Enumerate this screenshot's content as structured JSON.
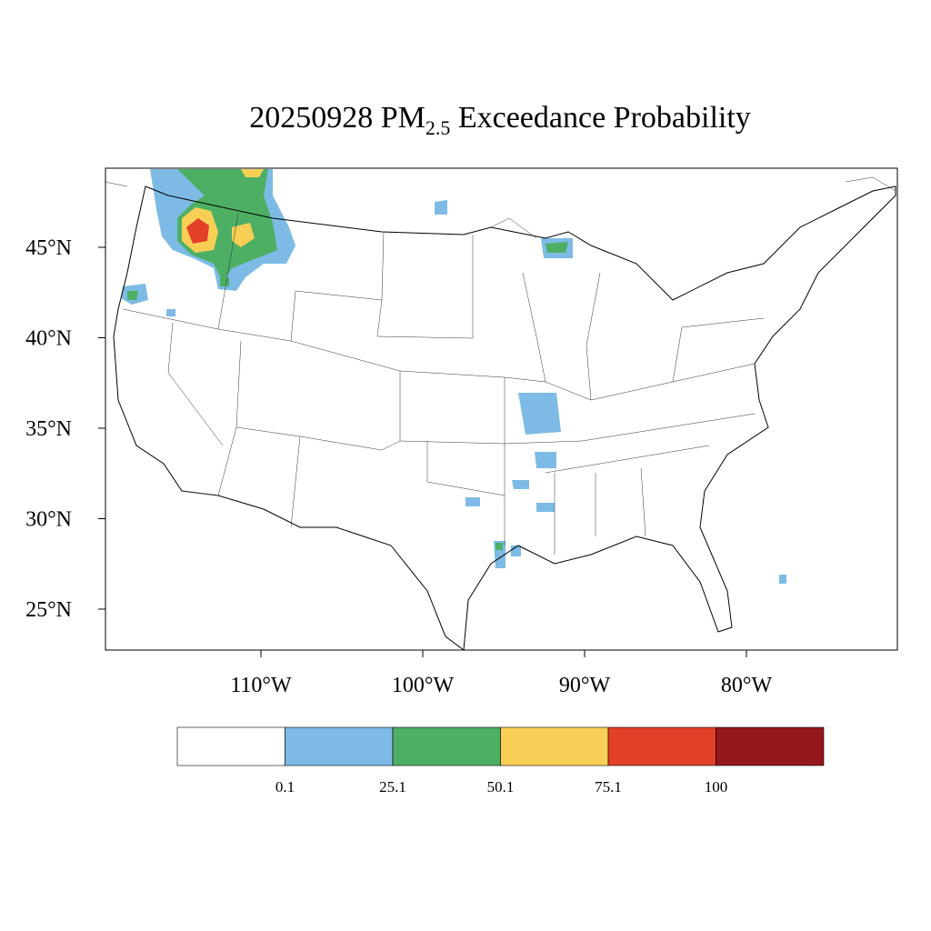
{
  "chart_data": {
    "type": "map",
    "title": {
      "main": "20250928 PM",
      "subscript": "2.5",
      "rest": " Exceedance Probability"
    },
    "yticks": [
      {
        "value": 45,
        "label": "45°N"
      },
      {
        "value": 40,
        "label": "40°N"
      },
      {
        "value": 35,
        "label": "35°N"
      },
      {
        "value": 30,
        "label": "30°N"
      },
      {
        "value": 25,
        "label": "25°N"
      }
    ],
    "xticks": [
      {
        "value": -110,
        "label": "110°W"
      },
      {
        "value": -100,
        "label": "100°W"
      },
      {
        "value": -90,
        "label": "90°W"
      },
      {
        "value": -80,
        "label": "80°W"
      }
    ],
    "colorbar": {
      "levels": [
        0.1,
        25.1,
        50.1,
        75.1,
        100
      ],
      "colors": [
        "#ffffff",
        "#7dbbe6",
        "#4caf64",
        "#f8cf55",
        "#e24128",
        "#93171c"
      ]
    }
  }
}
